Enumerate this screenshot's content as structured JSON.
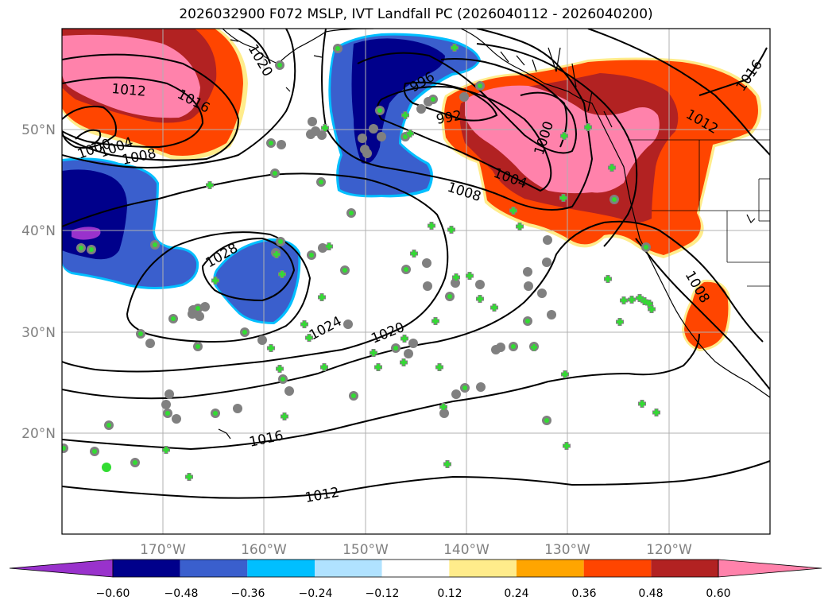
{
  "title": "2026032900 F072 MSLP, IVT Landfall PC (2026040112 - 2026040200)",
  "lat_labels": [
    "50°N",
    "40°N",
    "30°N",
    "20°N"
  ],
  "lon_labels": [
    "170°W",
    "160°W",
    "150°W",
    "140°W",
    "130°W",
    "120°W"
  ],
  "contour_labels": [
    "1020",
    "1012",
    "1016",
    "1000",
    "1004",
    "1008",
    "996",
    "992",
    "1000",
    "1004",
    "1008",
    "1012",
    "1016",
    "1028",
    "1024",
    "1020",
    "1016",
    "1012",
    "1008"
  ],
  "colorbar": {
    "colors": [
      "#9932cc",
      "#00008b",
      "#3a5fcd",
      "#00bfff",
      "#b0e2ff",
      "#ffffff",
      "#ffec8b",
      "#ffa500",
      "#ff4500",
      "#b22222",
      "#ff82ab"
    ],
    "tick_labels": [
      "−0.60",
      "−0.48",
      "−0.36",
      "−0.24",
      "−0.12",
      "0.12",
      "0.24",
      "0.36",
      "0.48",
      "0.60"
    ]
  }
}
